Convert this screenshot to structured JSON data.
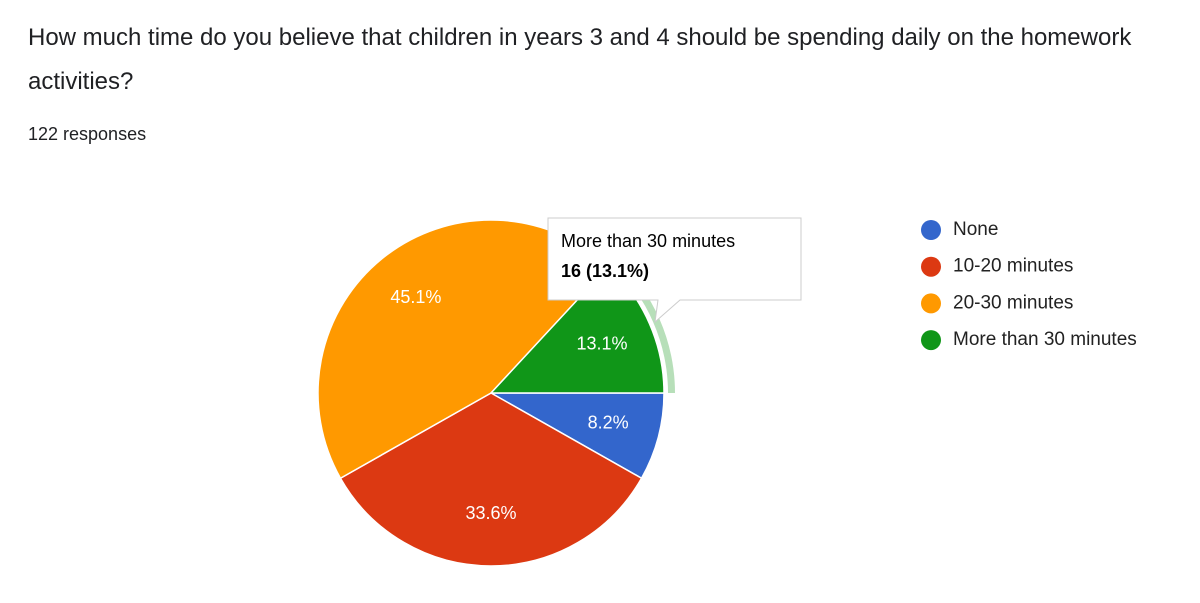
{
  "chart_data": {
    "type": "pie",
    "title": "How much time do you believe that children in years 3 and 4 should be spending daily on the homework activities?",
    "subtitle": "122 responses",
    "categories": [
      "None",
      "10-20 minutes",
      "20-30 minutes",
      "More than 30 minutes"
    ],
    "values": [
      8.2,
      33.6,
      45.1,
      13.1
    ],
    "value_labels": [
      "8.2%",
      "33.6%",
      "45.1%",
      "13.1%"
    ],
    "colors": [
      "#3366cc",
      "#dc3912",
      "#ff9900",
      "#109618"
    ],
    "legend": "right",
    "tooltip": {
      "title": "More than 30 minutes",
      "text": "16 (13.1%)"
    }
  }
}
